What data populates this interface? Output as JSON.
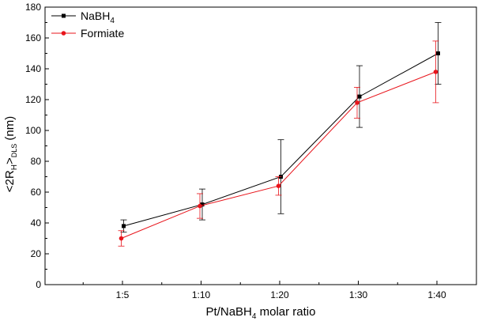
{
  "chart_data": {
    "type": "line",
    "title": "",
    "xlabel": {
      "main": "Pt/NaBH",
      "sub": "4",
      "rest": " molar ratio"
    },
    "ylabel": {
      "a": "<2R",
      "b": "H",
      "c": ">",
      "d": "DLS",
      "e": " (nm)"
    },
    "categories": [
      "1:5",
      "1:10",
      "1:20",
      "1:30",
      "1:40"
    ],
    "ylim": [
      0,
      180
    ],
    "yticks": [
      0,
      20,
      40,
      60,
      80,
      100,
      120,
      140,
      160,
      180
    ],
    "grid": false,
    "legend_position": "top-left",
    "series": [
      {
        "name": "NaBH4",
        "legend": {
          "main": "NaBH",
          "sub": "4"
        },
        "color": "#000000",
        "marker": "square",
        "values": [
          38,
          52,
          70,
          122,
          150
        ],
        "errors": [
          4,
          10,
          24,
          20,
          20
        ]
      },
      {
        "name": "Formiate",
        "legend": {
          "main": "Formiate",
          "sub": ""
        },
        "color": "#e8141b",
        "marker": "circle",
        "values": [
          30,
          51,
          64,
          118,
          138
        ],
        "errors": [
          5,
          8,
          6,
          10,
          20
        ]
      }
    ]
  }
}
